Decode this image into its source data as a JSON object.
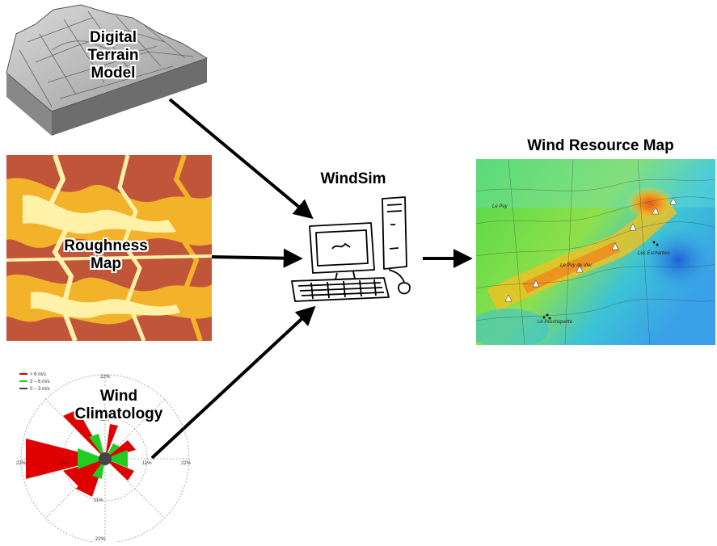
{
  "inputs": {
    "terrain": {
      "label_lines": [
        "Digital",
        "Terrain",
        "Model"
      ]
    },
    "roughness": {
      "label_lines": [
        "Roughness",
        "Map"
      ]
    },
    "climatology": {
      "label_lines": [
        "Wind",
        "Climatology"
      ],
      "legend": [
        "> 6 m/s",
        "3 – 6 m/s",
        "0 – 3 m/s"
      ],
      "ring_labels": [
        "22%",
        "11%",
        "22%",
        "11%",
        "11%",
        "22%",
        "11%",
        "22%"
      ],
      "colors": {
        "high": "#e00000",
        "mid": "#22cc22",
        "low": "#444444"
      }
    }
  },
  "processor": {
    "label": "WindSim"
  },
  "output": {
    "title": "Wind Resource Map",
    "place_names": [
      "Les Escharbes",
      "Le Puy de Vier",
      "Le Peschiquette",
      "Le Puy"
    ]
  },
  "colors": {
    "arrow": "#000000",
    "roughness_dark": "#c0553a",
    "roughness_mid": "#f2b32a",
    "roughness_light": "#fff1a8"
  }
}
